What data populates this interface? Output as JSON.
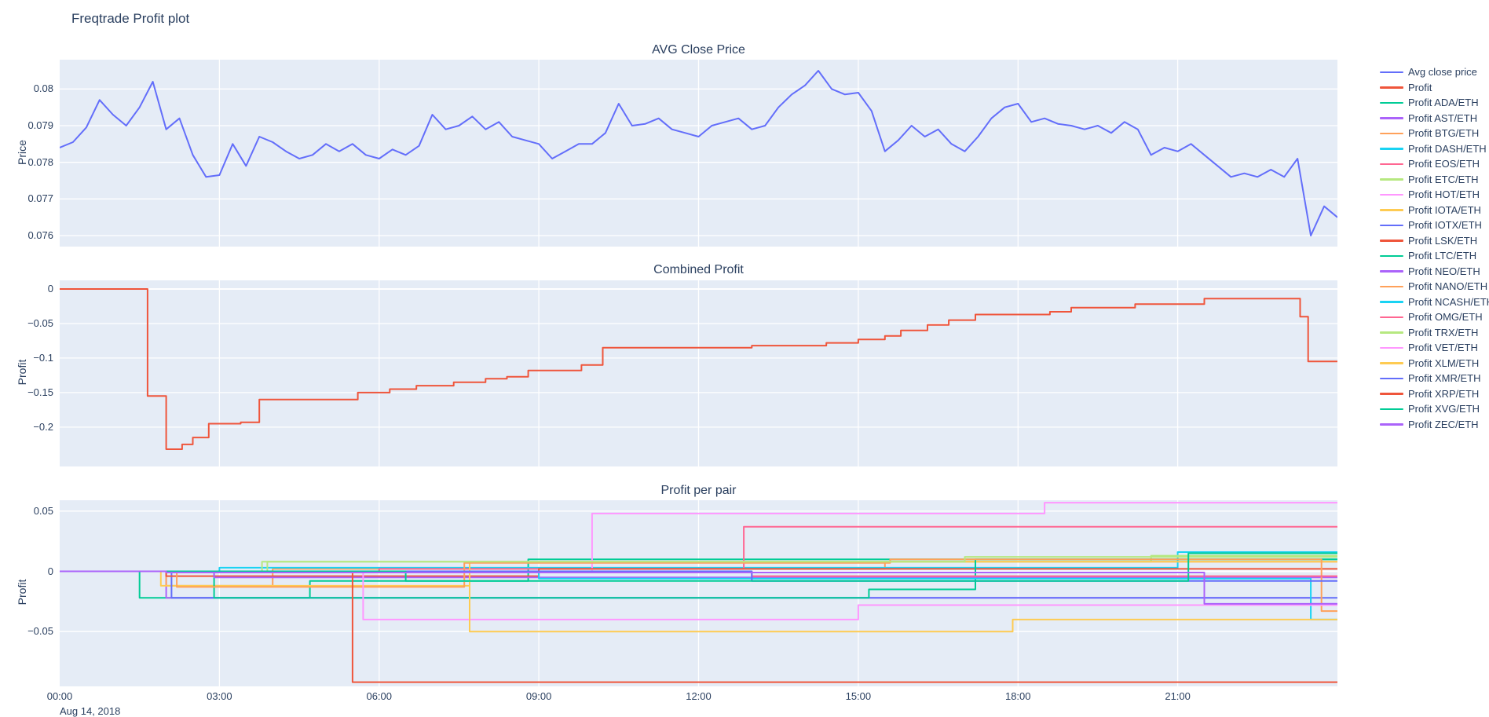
{
  "page": {
    "title": "Freqtrade Profit plot",
    "background": "#ffffff",
    "plot_background": "#E5ECF6",
    "text_color": "#2a3f5f"
  },
  "xaxis": {
    "range_hours": [
      0,
      24
    ],
    "tick_hours": [
      0,
      3,
      6,
      9,
      12,
      15,
      18,
      21
    ],
    "tick_labels": [
      "00:00",
      "03:00",
      "06:00",
      "09:00",
      "12:00",
      "15:00",
      "18:00",
      "21:00"
    ],
    "date_label": "Aug 14, 2018"
  },
  "chart_data": [
    {
      "type": "line",
      "title": "AVG Close Price",
      "ylabel": "Price",
      "ylim": [
        0.0757,
        0.0808
      ],
      "yticks": [
        0.076,
        0.077,
        0.078,
        0.079,
        0.08
      ],
      "ytick_labels": [
        "0.076",
        "0.077",
        "0.078",
        "0.079",
        "0.08"
      ],
      "grid": true,
      "legend_position": "right",
      "series": [
        {
          "name": "Avg close price",
          "color": "#636EFA",
          "mode": "line",
          "x_step": 0.25,
          "y": [
            0.0784,
            0.07855,
            0.07895,
            0.0797,
            0.0793,
            0.079,
            0.0795,
            0.0802,
            0.0789,
            0.0792,
            0.0782,
            0.0776,
            0.07765,
            0.0785,
            0.0779,
            0.0787,
            0.07855,
            0.0783,
            0.0781,
            0.0782,
            0.0785,
            0.0783,
            0.0785,
            0.0782,
            0.0781,
            0.07835,
            0.0782,
            0.07845,
            0.0793,
            0.0789,
            0.079,
            0.07925,
            0.0789,
            0.0791,
            0.0787,
            0.0786,
            0.0785,
            0.0781,
            0.0783,
            0.0785,
            0.0785,
            0.0788,
            0.0796,
            0.079,
            0.07905,
            0.0792,
            0.0789,
            0.0788,
            0.0787,
            0.079,
            0.0791,
            0.0792,
            0.0789,
            0.079,
            0.0795,
            0.07985,
            0.0801,
            0.0805,
            0.08,
            0.07985,
            0.0799,
            0.0794,
            0.0783,
            0.0786,
            0.079,
            0.0787,
            0.0789,
            0.0785,
            0.0783,
            0.0787,
            0.0792,
            0.0795,
            0.0796,
            0.0791,
            0.0792,
            0.07905,
            0.079,
            0.0789,
            0.079,
            0.0788,
            0.0791,
            0.0789,
            0.0782,
            0.0784,
            0.0783,
            0.0785,
            0.0782,
            0.0779,
            0.0776,
            0.0777,
            0.0776,
            0.0778,
            0.0776,
            0.0781,
            0.076,
            0.0768,
            0.0765
          ]
        }
      ]
    },
    {
      "type": "line",
      "title": "Combined Profit",
      "ylabel": "Profit",
      "ylim": [
        -0.257,
        0.0125
      ],
      "yticks": [
        0,
        -0.05,
        -0.1,
        -0.15,
        -0.2
      ],
      "ytick_labels": [
        "0",
        "−0.05",
        "−0.1",
        "−0.15",
        "−0.2"
      ],
      "grid": true,
      "series": [
        {
          "name": "Profit",
          "color": "#EF553B",
          "mode": "step",
          "x": [
            0,
            1.65,
            2.0,
            2.3,
            2.5,
            2.8,
            3.4,
            3.75,
            5.6,
            6.2,
            6.7,
            7.4,
            8.0,
            8.4,
            8.8,
            9.8,
            10.2,
            13.0,
            14.4,
            15.0,
            15.5,
            15.8,
            16.3,
            16.7,
            17.2,
            18.6,
            19.0,
            20.2,
            21.5,
            23.3,
            23.45,
            24
          ],
          "y": [
            0,
            -0.155,
            -0.232,
            -0.225,
            -0.215,
            -0.195,
            -0.193,
            -0.16,
            -0.15,
            -0.145,
            -0.14,
            -0.135,
            -0.13,
            -0.127,
            -0.118,
            -0.11,
            -0.085,
            -0.082,
            -0.078,
            -0.073,
            -0.068,
            -0.06,
            -0.052,
            -0.045,
            -0.037,
            -0.033,
            -0.027,
            -0.022,
            -0.014,
            -0.04,
            -0.105,
            -0.105
          ]
        }
      ]
    },
    {
      "type": "line",
      "title": "Profit per pair",
      "ylabel": "Profit",
      "ylim": [
        -0.0955,
        0.059
      ],
      "yticks": [
        0.05,
        0,
        -0.05
      ],
      "ytick_labels": [
        "0.05",
        "0",
        "−0.05"
      ],
      "grid": true,
      "series": [
        {
          "name": "Profit ADA/ETH",
          "color": "#00CC96",
          "mode": "step",
          "x": [
            0,
            1.5,
            4.7,
            8.8,
            24
          ],
          "y": [
            0,
            -0.022,
            -0.008,
            0.01,
            0.01
          ]
        },
        {
          "name": "Profit AST/ETH",
          "color": "#AB63FA",
          "mode": "step",
          "x": [
            0,
            2.0,
            23.5,
            24
          ],
          "y": [
            0,
            -0.022,
            -0.027,
            -0.027
          ]
        },
        {
          "name": "Profit BTG/ETH",
          "color": "#FFA15A",
          "mode": "step",
          "x": [
            0,
            2.0,
            4.0,
            15.5,
            24
          ],
          "y": [
            0,
            -0.012,
            0.002,
            0.008,
            0.008
          ]
        },
        {
          "name": "Profit DASH/ETH",
          "color": "#19D3F3",
          "mode": "step",
          "x": [
            0,
            3.0,
            21.0,
            24
          ],
          "y": [
            0,
            0.003,
            0.016,
            0.016
          ]
        },
        {
          "name": "Profit EOS/ETH",
          "color": "#FF6692",
          "mode": "step",
          "x": [
            0,
            6.0,
            12.85,
            24
          ],
          "y": [
            0,
            0.002,
            0.037,
            0.037
          ]
        },
        {
          "name": "Profit ETC/ETH",
          "color": "#B6E880",
          "mode": "step",
          "x": [
            0,
            3.9,
            20.5,
            24
          ],
          "y": [
            0,
            0.008,
            0.013,
            0.013
          ]
        },
        {
          "name": "Profit HOT/ETH",
          "color": "#FF97FF",
          "mode": "step",
          "x": [
            0,
            10.0,
            18.5,
            24
          ],
          "y": [
            0,
            0.048,
            0.057,
            0.057
          ]
        },
        {
          "name": "Profit IOTA/ETH",
          "color": "#FECB52",
          "mode": "step",
          "x": [
            0,
            1.9,
            7.7,
            24
          ],
          "y": [
            0,
            -0.012,
            0.008,
            0.008
          ]
        },
        {
          "name": "Profit IOTX/ETH",
          "color": "#636EFA",
          "mode": "step",
          "x": [
            0,
            2.1,
            24
          ],
          "y": [
            0,
            -0.022,
            -0.022
          ]
        },
        {
          "name": "Profit LSK/ETH",
          "color": "#EF553B",
          "mode": "step",
          "x": [
            0,
            2.0,
            9.0,
            24
          ],
          "y": [
            0,
            -0.004,
            0.002,
            0.002
          ]
        },
        {
          "name": "Profit LTC/ETH",
          "color": "#00CC96",
          "mode": "step",
          "x": [
            0,
            2.9,
            15.2,
            17.2,
            24
          ],
          "y": [
            0,
            -0.022,
            -0.015,
            0.01,
            0.01
          ]
        },
        {
          "name": "Profit NEO/ETH",
          "color": "#AB63FA",
          "mode": "step",
          "x": [
            0,
            2.9,
            24
          ],
          "y": [
            0,
            -0.005,
            -0.005
          ]
        },
        {
          "name": "Profit NANO/ETH",
          "color": "#FFA15A",
          "mode": "step",
          "x": [
            0,
            2.2,
            7.6,
            15.6,
            23.7,
            24
          ],
          "y": [
            0,
            -0.013,
            0.007,
            0.01,
            -0.033,
            -0.033
          ]
        },
        {
          "name": "Profit NCASH/ETH",
          "color": "#19D3F3",
          "mode": "step",
          "x": [
            0,
            9.0,
            23.5,
            24
          ],
          "y": [
            0,
            -0.006,
            -0.04,
            -0.04
          ]
        },
        {
          "name": "Profit OMG/ETH",
          "color": "#FF6692",
          "mode": "step",
          "x": [
            0,
            13.0,
            24
          ],
          "y": [
            0,
            -0.004,
            -0.004
          ]
        },
        {
          "name": "Profit TRX/ETH",
          "color": "#B6E880",
          "mode": "step",
          "x": [
            0,
            3.8,
            17.0,
            24
          ],
          "y": [
            0,
            0.008,
            0.012,
            0.012
          ]
        },
        {
          "name": "Profit VET/ETH",
          "color": "#FF97FF",
          "mode": "step",
          "x": [
            0,
            5.7,
            15.0,
            24
          ],
          "y": [
            0,
            -0.04,
            -0.028,
            -0.028
          ]
        },
        {
          "name": "Profit XLM/ETH",
          "color": "#FECB52",
          "mode": "step",
          "x": [
            0,
            7.7,
            17.9,
            24
          ],
          "y": [
            0,
            -0.05,
            -0.04,
            -0.04
          ]
        },
        {
          "name": "Profit XMR/ETH",
          "color": "#636EFA",
          "mode": "step",
          "x": [
            0,
            13.0,
            24
          ],
          "y": [
            0,
            -0.008,
            -0.008
          ]
        },
        {
          "name": "Profit XRP/ETH",
          "color": "#EF553B",
          "mode": "step",
          "x": [
            0,
            5.5,
            24
          ],
          "y": [
            0,
            -0.092,
            -0.092
          ]
        },
        {
          "name": "Profit XVG/ETH",
          "color": "#00CC96",
          "mode": "step",
          "x": [
            0,
            6.5,
            21.2,
            24
          ],
          "y": [
            0,
            -0.008,
            0.015,
            0.015
          ]
        },
        {
          "name": "Profit ZEC/ETH",
          "color": "#AB63FA",
          "mode": "step",
          "x": [
            0,
            2.0,
            21.5,
            24
          ],
          "y": [
            0,
            -0.001,
            -0.027,
            -0.027
          ]
        }
      ]
    }
  ]
}
